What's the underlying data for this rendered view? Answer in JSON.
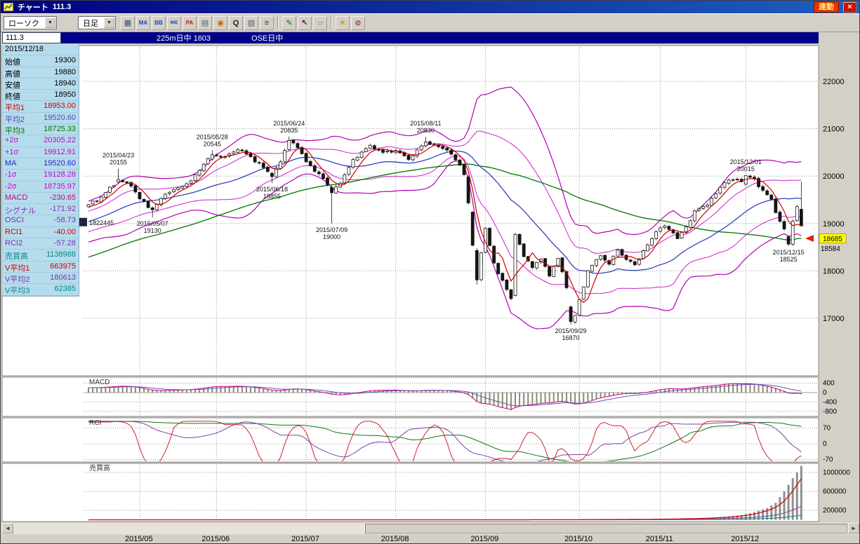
{
  "window": {
    "title": "チャート",
    "title_value": "111.3",
    "linked_badge": "連動",
    "close_glyph": "×"
  },
  "toolbar": {
    "chart_type_label": "ローソク",
    "timeframe_label": "日足",
    "dropdown_arrow": "▼",
    "buttons": [
      {
        "name": "pattern-button",
        "glyph": "▦",
        "color": "#335577"
      },
      {
        "name": "ma-button",
        "glyph": "MA",
        "color": "#2244bb"
      },
      {
        "name": "bollinger-button",
        "glyph": "BB",
        "color": "#2244bb"
      },
      {
        "name": "mie-button",
        "glyph": "MIE",
        "color": "#2244bb"
      },
      {
        "name": "pa-button",
        "glyph": "PA",
        "color": "#bb2222"
      },
      {
        "name": "layout-button",
        "glyph": "▤",
        "color": "#556677"
      },
      {
        "name": "price-mark-button",
        "glyph": "◉",
        "color": "#cc6600"
      },
      {
        "name": "zoom-button",
        "glyph": "Q",
        "color": "#222233"
      },
      {
        "name": "scale-button",
        "glyph": "▧",
        "color": "#556677"
      },
      {
        "name": "gridline-button",
        "glyph": "≡",
        "color": "#333333"
      },
      {
        "sep": true
      },
      {
        "name": "pencil-button",
        "glyph": "✎",
        "color": "#007700"
      },
      {
        "name": "pointer-button",
        "glyph": "↖",
        "color": "#222222"
      },
      {
        "name": "eraser-button",
        "glyph": "▱",
        "color": "#aa7788"
      },
      {
        "sep": true
      },
      {
        "name": "key-button",
        "glyph": "✳",
        "color": "#bb8800"
      },
      {
        "name": "draw-off-button",
        "glyph": "⊘",
        "color": "#993333"
      }
    ]
  },
  "subbar": {
    "symbol_value": "111.3",
    "contract": "225m日中 1603",
    "session": "OSE日中"
  },
  "info_panel": {
    "date": "2015/12/18",
    "rows": [
      {
        "label": "始値",
        "value": "19300",
        "color": "#000000"
      },
      {
        "label": "高値",
        "value": "19880",
        "color": "#000000"
      },
      {
        "label": "安値",
        "value": "18940",
        "color": "#000000"
      },
      {
        "label": "終値",
        "value": "18950",
        "color": "#000000"
      },
      {
        "label": "平均1",
        "value": "18953.00",
        "color": "#cc0000"
      },
      {
        "label": "平均2",
        "value": "19520.60",
        "color": "#5544bb"
      },
      {
        "label": "平均3",
        "value": "18725.33",
        "color": "#007700"
      },
      {
        "label": "+2σ",
        "value": "20305.22",
        "color": "#cc00cc"
      },
      {
        "label": "+1σ",
        "value": "19912.91",
        "color": "#cc00cc"
      },
      {
        "label": "MA",
        "value": "19520.60",
        "color": "#2222cc"
      },
      {
        "label": "-1σ",
        "value": "19128.28",
        "color": "#cc00cc"
      },
      {
        "label": "-2σ",
        "value": "18735.97",
        "color": "#cc00cc"
      },
      {
        "label": "MACD",
        "value": "-230.65",
        "color": "#cc0077"
      },
      {
        "label": "シグナル",
        "value": "-171.92",
        "color": "#7733aa"
      },
      {
        "label": "OSCI",
        "value": "-58.73",
        "color": "#7733aa"
      },
      {
        "label": "RCI1",
        "value": "-40.00",
        "color": "#cc0000"
      },
      {
        "label": "RCI2",
        "value": "-57.28",
        "color": "#7733aa"
      },
      {
        "label": "売買高",
        "value": "1138988",
        "color": "#008888"
      },
      {
        "label": "V平均1",
        "value": "663975",
        "color": "#cc0000"
      },
      {
        "label": "V平均2",
        "value": "180613",
        "color": "#7733aa"
      },
      {
        "label": "V平均3",
        "value": "62385",
        "color": "#008888"
      }
    ]
  },
  "colors": {
    "grid": "#999999",
    "up_candle": "#ffffff",
    "down_candle": "#151515",
    "ma1": "#cc0000",
    "ma2": "#3344bb",
    "ma3": "#007700",
    "bollinger": "#cc22cc",
    "bollinger2": "#b300b3",
    "macd": "#cc0088",
    "signal": "#6655bb",
    "macd_bar": "#8a8a70",
    "rci1": "#cc2233",
    "rci2": "#7744aa",
    "rci3": "#117711",
    "volume_bar": "#909090",
    "vma1": "#cc0000",
    "vma2": "#7744aa",
    "vma3": "#008877",
    "badge_bg": "#ffff00"
  },
  "chart_data": {
    "type": "candlestick",
    "title": "225m日中 1603 OSE日中 日足",
    "y_axis": {
      "ticks": [
        22000,
        21000,
        20000,
        19000,
        18000,
        17000
      ]
    },
    "x_axis": {
      "months": [
        {
          "label": "2015/05",
          "index": 12
        },
        {
          "label": "2015/06",
          "index": 30
        },
        {
          "label": "2015/07",
          "index": 51
        },
        {
          "label": "2015/08",
          "index": 72
        },
        {
          "label": "2015/09",
          "index": 93
        },
        {
          "label": "2015/10",
          "index": 115
        },
        {
          "label": "2015/11",
          "index": 134
        },
        {
          "label": "2015/12",
          "index": 154
        }
      ]
    },
    "prehistory_start": 17000,
    "anchors": [
      [
        0,
        19400
      ],
      [
        3,
        19560
      ],
      [
        7,
        19925
      ],
      [
        10,
        19790
      ],
      [
        12,
        19520
      ],
      [
        15,
        19290
      ],
      [
        18,
        19620
      ],
      [
        21,
        19750
      ],
      [
        24,
        19900
      ],
      [
        27,
        20250
      ],
      [
        29,
        20450
      ],
      [
        32,
        20410
      ],
      [
        35,
        20560
      ],
      [
        38,
        20410
      ],
      [
        41,
        20180
      ],
      [
        43,
        19990
      ],
      [
        45,
        20300
      ],
      [
        47,
        20750
      ],
      [
        49,
        20600
      ],
      [
        51,
        20300
      ],
      [
        53,
        20100
      ],
      [
        55,
        19950
      ],
      [
        57,
        19650
      ],
      [
        59,
        19850
      ],
      [
        62,
        20350
      ],
      [
        66,
        20650
      ],
      [
        69,
        20500
      ],
      [
        72,
        20540
      ],
      [
        75,
        20350
      ],
      [
        79,
        20720
      ],
      [
        82,
        20620
      ],
      [
        84,
        20550
      ],
      [
        87,
        20230
      ],
      [
        88,
        20030
      ],
      [
        89,
        19435
      ],
      [
        90,
        18540
      ],
      [
        91,
        17810
      ],
      [
        92,
        18380
      ],
      [
        93,
        18900
      ],
      [
        95,
        18165
      ],
      [
        97,
        17800
      ],
      [
        99,
        17415
      ],
      [
        100,
        18770
      ],
      [
        102,
        18300
      ],
      [
        104,
        18070
      ],
      [
        106,
        18250
      ],
      [
        108,
        17890
      ],
      [
        110,
        18265
      ],
      [
        112,
        17645
      ],
      [
        113,
        16930
      ],
      [
        114,
        17060
      ],
      [
        115,
        17390
      ],
      [
        117,
        18005
      ],
      [
        120,
        18320
      ],
      [
        122,
        18140
      ],
      [
        124,
        18440
      ],
      [
        126,
        18240
      ],
      [
        128,
        18130
      ],
      [
        131,
        18550
      ],
      [
        133,
        18825
      ],
      [
        135,
        18950
      ],
      [
        137,
        18800
      ],
      [
        138,
        18680
      ],
      [
        140,
        18930
      ],
      [
        142,
        19265
      ],
      [
        145,
        19390
      ],
      [
        147,
        19630
      ],
      [
        149,
        19860
      ],
      [
        151,
        19925
      ],
      [
        153,
        19880
      ],
      [
        154,
        20012
      ],
      [
        156,
        19940
      ],
      [
        158,
        19700
      ],
      [
        160,
        19510
      ],
      [
        161,
        19230
      ],
      [
        162,
        19045
      ],
      [
        163,
        18885
      ],
      [
        164,
        18565
      ],
      [
        165,
        19050
      ],
      [
        166,
        19355
      ],
      [
        167,
        18950
      ]
    ],
    "ohlc_overrides": {
      "7": [
        19880,
        20155,
        19830,
        19925
      ],
      "15": [
        19330,
        19360,
        19130,
        19290
      ],
      "29": [
        20360,
        20545,
        20330,
        20450
      ],
      "43": [
        20060,
        20090,
        19855,
        19990
      ],
      "47": [
        20560,
        20835,
        20530,
        20750
      ],
      "57": [
        19760,
        19800,
        19000,
        19650
      ],
      "79": [
        20640,
        20830,
        20600,
        20720
      ],
      "89": [
        19980,
        20010,
        19400,
        19435
      ],
      "90": [
        19240,
        19260,
        18520,
        18540
      ],
      "91": [
        18430,
        18480,
        17710,
        17810
      ],
      "100": [
        17480,
        18800,
        17460,
        18770
      ],
      "113": [
        17240,
        17270,
        16870,
        16930
      ],
      "154": [
        19830,
        20015,
        19800,
        20012
      ],
      "164": [
        18720,
        18750,
        18525,
        18565
      ],
      "167": [
        19300,
        19880,
        18940,
        18950
      ]
    },
    "annotations": [
      {
        "date": "2015/04/23",
        "value": "20155",
        "index": 7,
        "price": 20155,
        "side": "above"
      },
      {
        "date": "2015/05/07",
        "value": "19130",
        "index": 15,
        "price": 19130,
        "side": "below"
      },
      {
        "date": "2015/05/28",
        "value": "20545",
        "index": 29,
        "price": 20545,
        "side": "above"
      },
      {
        "date": "2015/06/18",
        "value": "19855",
        "index": 43,
        "price": 19855,
        "side": "below"
      },
      {
        "date": "2015/06/24",
        "value": "20835",
        "index": 47,
        "price": 20835,
        "side": "above"
      },
      {
        "date": "2015/07/09",
        "value": "19000",
        "index": 57,
        "price": 19000,
        "side": "below"
      },
      {
        "date": "2015/08/11",
        "value": "20830",
        "index": 79,
        "price": 20830,
        "side": "above"
      },
      {
        "date": "2015/09/29",
        "value": "16870",
        "index": 113,
        "price": 16870,
        "side": "below"
      },
      {
        "date": "2015/12/01",
        "value": "20015",
        "index": 154,
        "price": 20015,
        "side": "above"
      },
      {
        "date": "2015/12/15",
        "value": "18525",
        "index": 164,
        "price": 18525,
        "side": "below"
      }
    ],
    "markers": {
      "position_marker": {
        "text": "1822445",
        "price": 19030
      },
      "last_price": {
        "text": "18685",
        "price": 18685
      },
      "secondary_price": {
        "text": "18584"
      }
    },
    "panels": {
      "macd": {
        "label": "MACD",
        "ticks": [
          400,
          0,
          -400,
          -800
        ]
      },
      "rci": {
        "label": "RCI",
        "ticks": [
          70,
          0,
          -70
        ]
      },
      "volume": {
        "label": "売買高",
        "ticks": [
          1000000,
          600000,
          200000
        ],
        "anchors": [
          [
            0,
            0
          ],
          [
            100,
            0
          ],
          [
            105,
            2000
          ],
          [
            115,
            4000
          ],
          [
            125,
            8000
          ],
          [
            134,
            15000
          ],
          [
            140,
            25000
          ],
          [
            145,
            40000
          ],
          [
            150,
            70000
          ],
          [
            153,
            100000
          ],
          [
            155,
            140000
          ],
          [
            157,
            190000
          ],
          [
            159,
            250000
          ],
          [
            161,
            360000
          ],
          [
            162,
            480000
          ],
          [
            163,
            600000
          ],
          [
            164,
            740000
          ],
          [
            165,
            880000
          ],
          [
            166,
            1000000
          ],
          [
            167,
            1138988
          ]
        ]
      }
    }
  },
  "scrollbar": {
    "left_arrow": "◄",
    "right_arrow": "►"
  }
}
